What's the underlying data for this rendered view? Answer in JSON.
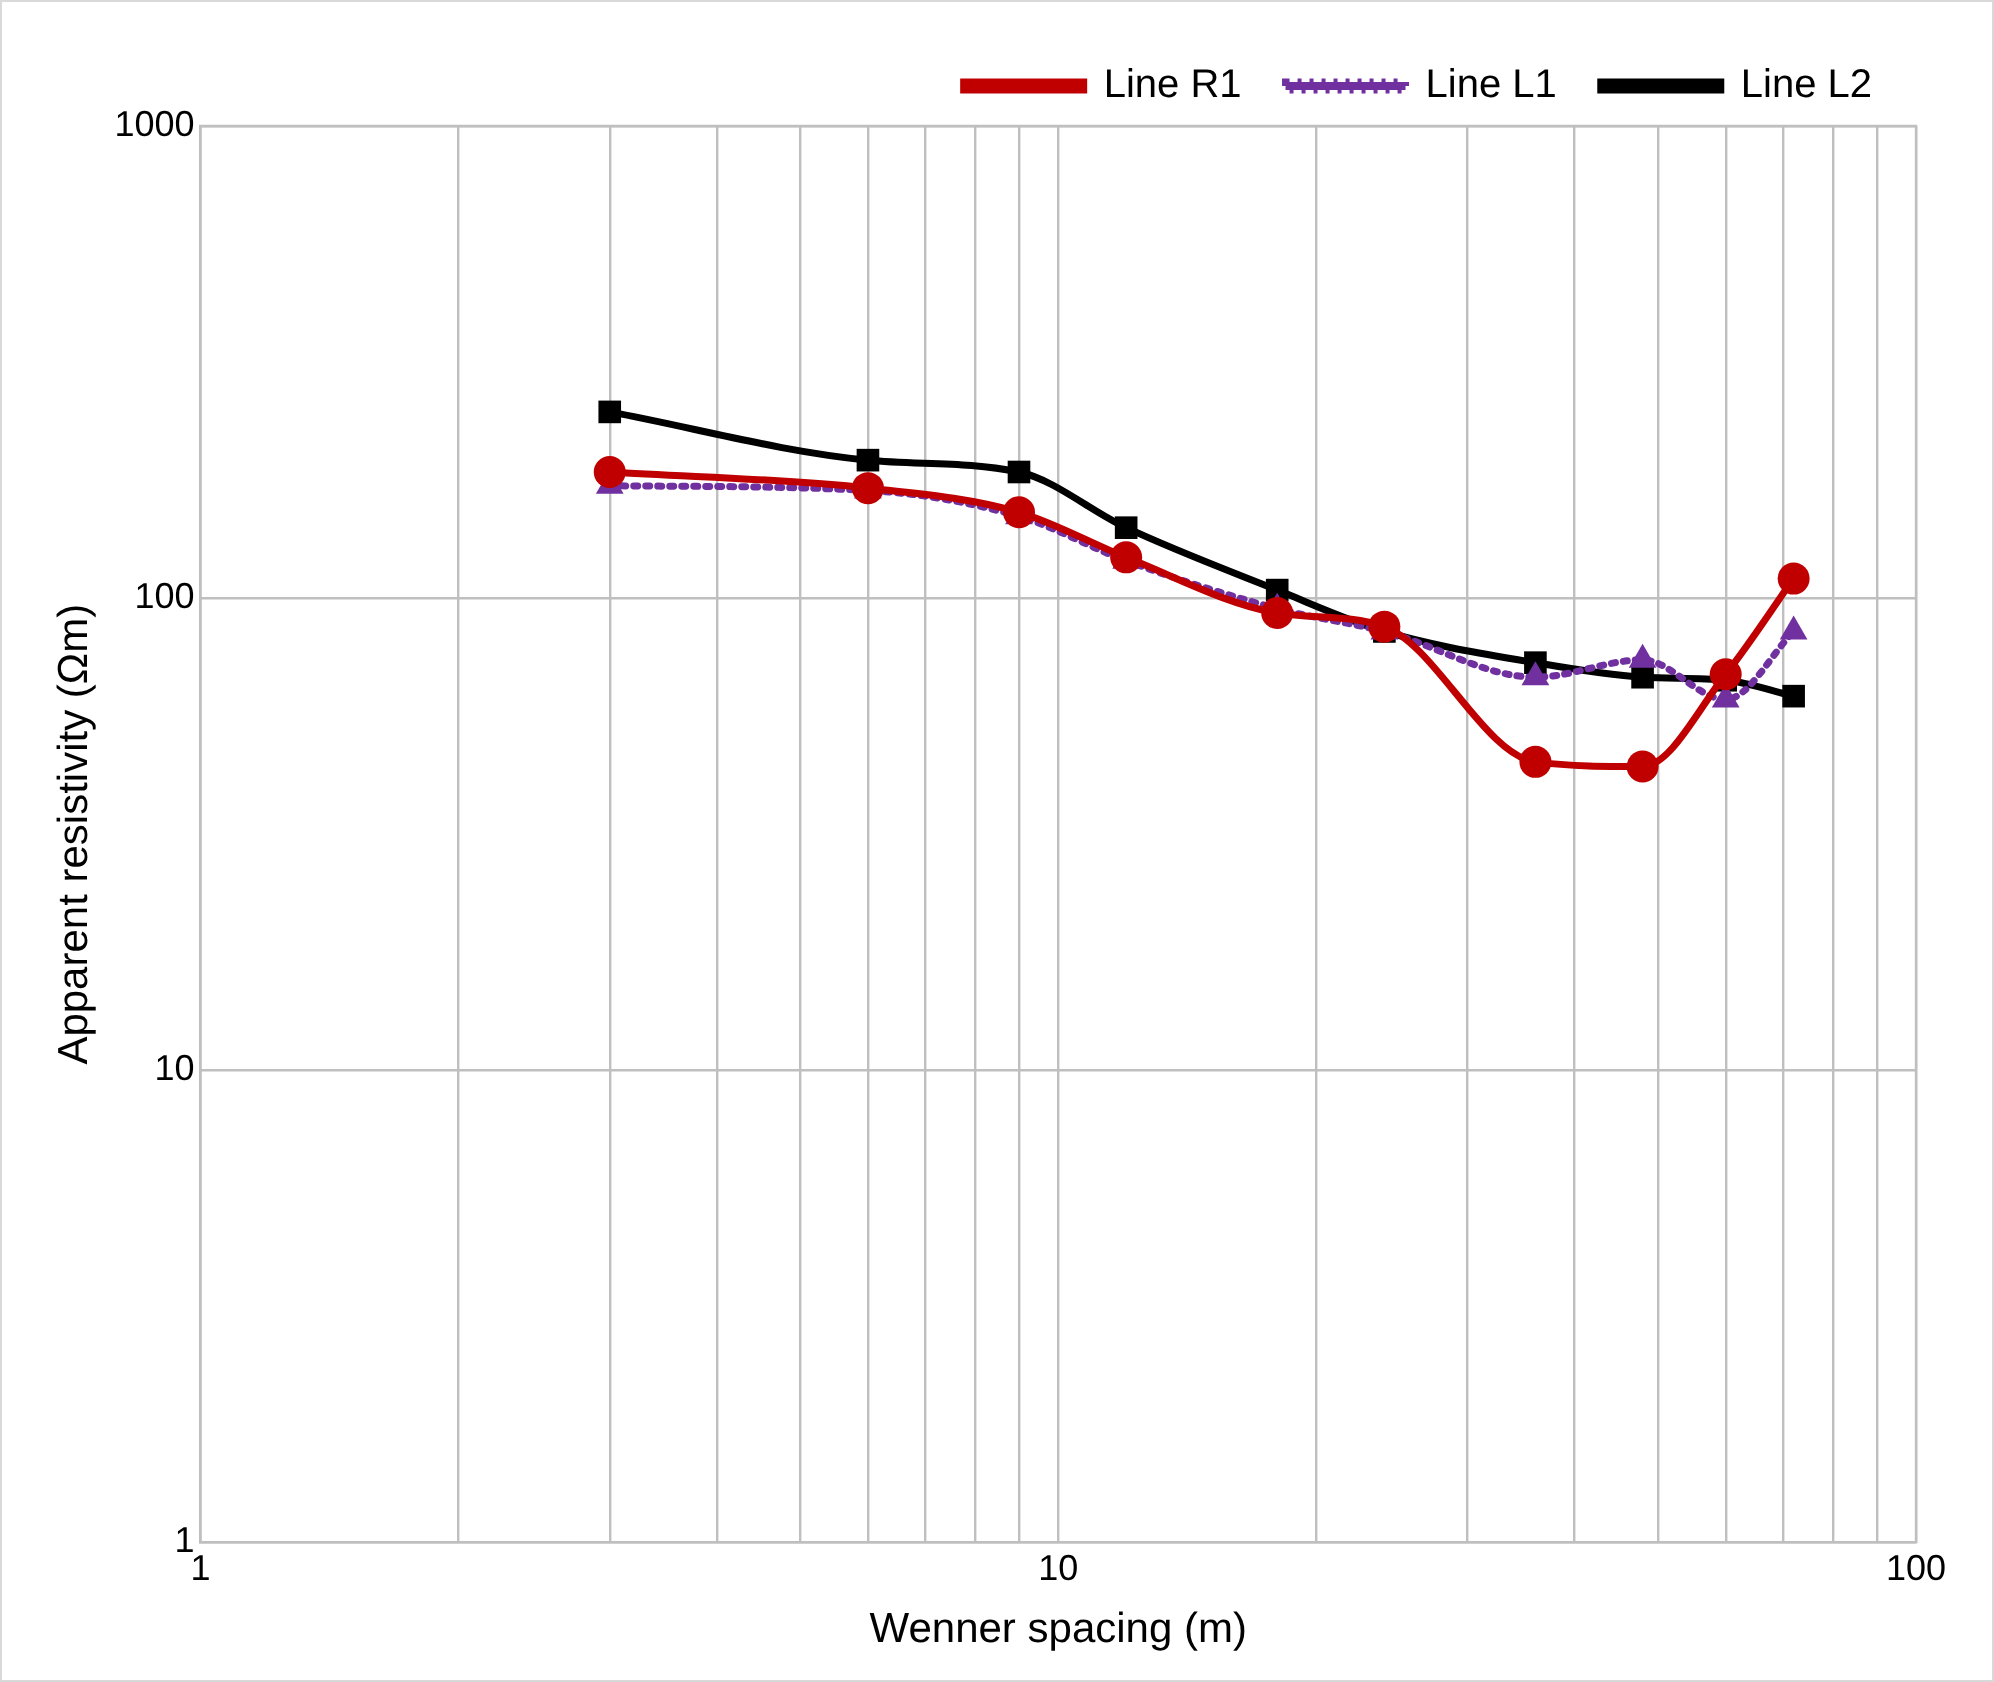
{
  "chart_data": {
    "type": "line",
    "xlabel": "Wenner spacing (m)",
    "ylabel": "Apparent resistivity (Ωm)",
    "x": [
      3,
      6,
      9,
      12,
      18,
      24,
      36,
      48,
      60,
      72
    ],
    "series": [
      {
        "name": "Line R1",
        "color": "#c00000",
        "marker": "circle",
        "line_style": "solid",
        "values": [
          185,
          171,
          152,
          122,
          93,
          87,
          45,
          44,
          69,
          110
        ]
      },
      {
        "name": "Line L1",
        "color": "#7030a0",
        "marker": "triangle",
        "line_style": "dotted",
        "values": [
          173,
          169,
          149,
          120,
          95,
          85,
          68,
          74,
          61,
          85
        ]
      },
      {
        "name": "Line L2",
        "color": "#000000",
        "marker": "square",
        "line_style": "solid",
        "values": [
          248,
          196,
          185,
          141,
          104,
          85,
          73,
          68,
          67,
          62
        ]
      }
    ],
    "log": "xy",
    "xlim": [
      1,
      100
    ],
    "ylim": [
      1,
      1000
    ],
    "xticks": [
      1,
      {
        "value": 2,
        "label": null
      },
      {
        "value": 3,
        "label": null
      },
      {
        "value": 4,
        "label": null
      },
      {
        "value": 5,
        "label": null
      },
      {
        "value": 6,
        "label": null
      },
      {
        "value": 7,
        "label": null
      },
      {
        "value": 8,
        "label": null
      },
      {
        "value": 9,
        "label": null
      },
      10,
      {
        "value": 20,
        "label": null
      },
      {
        "value": 30,
        "label": null
      },
      {
        "value": 40,
        "label": null
      },
      {
        "value": 50,
        "label": null
      },
      {
        "value": 60,
        "label": null
      },
      {
        "value": 70,
        "label": null
      },
      {
        "value": 80,
        "label": null
      },
      {
        "value": 90,
        "label": null
      },
      100
    ],
    "yticks": [
      1,
      10,
      100,
      1000
    ],
    "grid": true,
    "legend": "top"
  }
}
